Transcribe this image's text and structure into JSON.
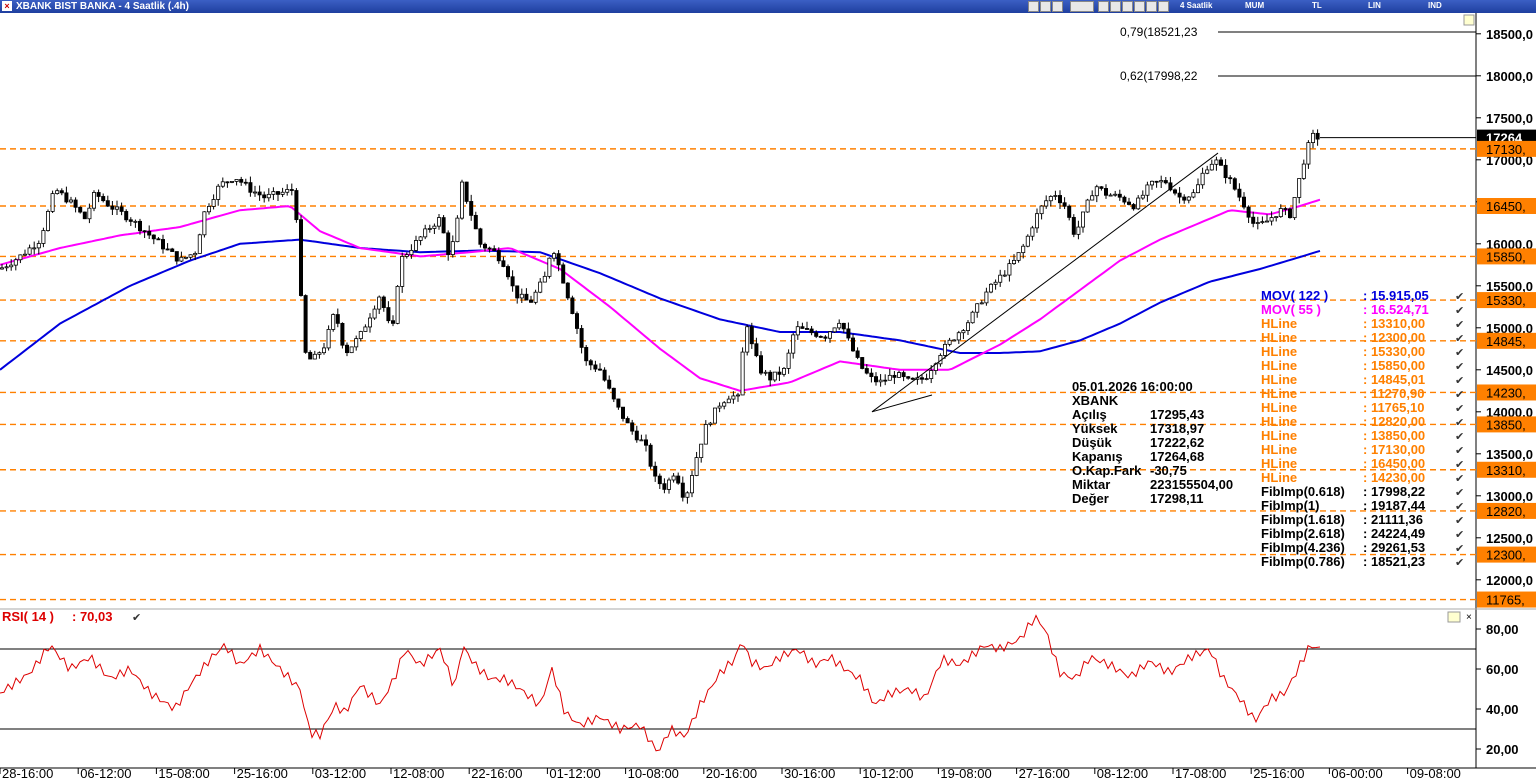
{
  "window": {
    "title": "XBANK BIST BANKA - 4 Saatlik (.4h)",
    "toolbar": [
      "4 Saatlik",
      "MUM",
      "TL",
      "LIN",
      "IND"
    ]
  },
  "colors": {
    "candle": "#000000",
    "mov122": "#0000dd",
    "mov55": "#ff00ff",
    "hline": "#ff8000",
    "rsi": "#dd0000"
  },
  "chart_data": [
    {
      "type": "candlestick",
      "symbol": "XBANK",
      "ylim": [
        11700,
        18700
      ],
      "y_ticks": [
        "18500,0",
        "18000,0",
        "17500,0",
        "17000,0",
        "16500,0",
        "16000,0",
        "15500,0",
        "15000,0",
        "14500,0",
        "14000,0",
        "13500,0",
        "13000,0",
        "12500,0",
        "12000,0"
      ],
      "x_labels": [
        "28-16:00",
        "06-12:00",
        "15-08:00",
        "25-16:00",
        "03-12:00",
        "12-08:00",
        "22-16:00",
        "01-12:00",
        "10-08:00",
        "20-16:00",
        "30-16:00",
        "10-12:00",
        "19-08:00",
        "27-16:00",
        "08-12:00",
        "17-08:00",
        "25-16:00",
        "06-00:00",
        "09-08:00"
      ],
      "last_price": "17264",
      "fib_levels": [
        {
          "label": "0,79(18521,23",
          "value": 18521.23
        },
        {
          "label": "0,62(17998,22",
          "value": 17998.22
        }
      ],
      "hlines": [
        {
          "label": "17130,",
          "value": 17130
        },
        {
          "label": "16450,",
          "value": 16450
        },
        {
          "label": "15850,",
          "value": 15850
        },
        {
          "label": "15330,",
          "value": 15330
        },
        {
          "label": "14845,",
          "value": 14845
        },
        {
          "label": "14230,",
          "value": 14230
        },
        {
          "label": "13850,",
          "value": 13850
        },
        {
          "label": "13310,",
          "value": 13310
        },
        {
          "label": "12820,",
          "value": 12820
        },
        {
          "label": "12300,",
          "value": 12300
        },
        {
          "label": "11765,",
          "value": 11765
        }
      ],
      "price_anchors": [
        [
          0,
          15700
        ],
        [
          20,
          15850
        ],
        [
          40,
          16050
        ],
        [
          55,
          16650
        ],
        [
          70,
          16500
        ],
        [
          85,
          16300
        ],
        [
          95,
          16600
        ],
        [
          110,
          16450
        ],
        [
          130,
          16300
        ],
        [
          150,
          16100
        ],
        [
          165,
          15950
        ],
        [
          180,
          15800
        ],
        [
          195,
          15900
        ],
        [
          205,
          16400
        ],
        [
          220,
          16700
        ],
        [
          235,
          16800
        ],
        [
          250,
          16650
        ],
        [
          265,
          16550
        ],
        [
          280,
          16600
        ],
        [
          295,
          16650
        ],
        [
          300,
          15500
        ],
        [
          305,
          14700
        ],
        [
          312,
          14600
        ],
        [
          325,
          14800
        ],
        [
          335,
          15200
        ],
        [
          345,
          14700
        ],
        [
          360,
          14900
        ],
        [
          380,
          15400
        ],
        [
          392,
          14900
        ],
        [
          400,
          15800
        ],
        [
          415,
          16000
        ],
        [
          430,
          16200
        ],
        [
          440,
          16300
        ],
        [
          448,
          15900
        ],
        [
          455,
          16050
        ],
        [
          462,
          16700
        ],
        [
          470,
          16400
        ],
        [
          480,
          16000
        ],
        [
          495,
          15900
        ],
        [
          505,
          15750
        ],
        [
          515,
          15400
        ],
        [
          530,
          15300
        ],
        [
          545,
          15600
        ],
        [
          552,
          16000
        ],
        [
          565,
          15500
        ],
        [
          575,
          15100
        ],
        [
          585,
          14600
        ],
        [
          600,
          14500
        ],
        [
          615,
          14100
        ],
        [
          630,
          13800
        ],
        [
          645,
          13600
        ],
        [
          655,
          13200
        ],
        [
          665,
          13100
        ],
        [
          675,
          13300
        ],
        [
          685,
          12950
        ],
        [
          695,
          13400
        ],
        [
          705,
          13800
        ],
        [
          720,
          14100
        ],
        [
          730,
          14200
        ],
        [
          740,
          14150
        ],
        [
          745,
          15200
        ],
        [
          750,
          14850
        ],
        [
          760,
          14500
        ],
        [
          770,
          14400
        ],
        [
          785,
          14500
        ],
        [
          795,
          15000
        ],
        [
          810,
          14950
        ],
        [
          825,
          14900
        ],
        [
          840,
          15100
        ],
        [
          850,
          14800
        ],
        [
          860,
          14550
        ],
        [
          870,
          14400
        ],
        [
          880,
          14350
        ],
        [
          895,
          14450
        ],
        [
          910,
          14350
        ],
        [
          925,
          14400
        ],
        [
          940,
          14700
        ],
        [
          955,
          14900
        ],
        [
          970,
          15100
        ],
        [
          985,
          15400
        ],
        [
          1000,
          15600
        ],
        [
          1015,
          15800
        ],
        [
          1025,
          16000
        ],
        [
          1035,
          16300
        ],
        [
          1045,
          16500
        ],
        [
          1055,
          16600
        ],
        [
          1065,
          16450
        ],
        [
          1075,
          16100
        ],
        [
          1085,
          16400
        ],
        [
          1095,
          16700
        ],
        [
          1105,
          16600
        ],
        [
          1120,
          16550
        ],
        [
          1135,
          16450
        ],
        [
          1150,
          16700
        ],
        [
          1165,
          16750
        ],
        [
          1180,
          16550
        ],
        [
          1195,
          16600
        ],
        [
          1205,
          16900
        ],
        [
          1215,
          17000
        ],
        [
          1230,
          16750
        ],
        [
          1245,
          16450
        ],
        [
          1255,
          16200
        ],
        [
          1265,
          16250
        ],
        [
          1280,
          16400
        ],
        [
          1290,
          16350
        ],
        [
          1298,
          16700
        ],
        [
          1305,
          17050
        ],
        [
          1312,
          17280
        ],
        [
          1320,
          17264
        ]
      ],
      "mov122_anchors": [
        [
          0,
          14500
        ],
        [
          60,
          15050
        ],
        [
          130,
          15500
        ],
        [
          190,
          15800
        ],
        [
          240,
          16000
        ],
        [
          300,
          16050
        ],
        [
          360,
          15950
        ],
        [
          420,
          15900
        ],
        [
          480,
          15920
        ],
        [
          540,
          15900
        ],
        [
          600,
          15650
        ],
        [
          660,
          15350
        ],
        [
          720,
          15100
        ],
        [
          780,
          14950
        ],
        [
          840,
          14950
        ],
        [
          900,
          14850
        ],
        [
          960,
          14700
        ],
        [
          1000,
          14700
        ],
        [
          1040,
          14720
        ],
        [
          1080,
          14850
        ],
        [
          1120,
          15050
        ],
        [
          1160,
          15300
        ],
        [
          1210,
          15550
        ],
        [
          1260,
          15700
        ],
        [
          1320,
          15915
        ]
      ],
      "mov55_anchors": [
        [
          0,
          15750
        ],
        [
          60,
          15950
        ],
        [
          120,
          16100
        ],
        [
          180,
          16200
        ],
        [
          240,
          16400
        ],
        [
          290,
          16450
        ],
        [
          320,
          16150
        ],
        [
          360,
          15950
        ],
        [
          420,
          15850
        ],
        [
          470,
          15900
        ],
        [
          510,
          15950
        ],
        [
          560,
          15700
        ],
        [
          610,
          15250
        ],
        [
          660,
          14750
        ],
        [
          700,
          14400
        ],
        [
          740,
          14250
        ],
        [
          790,
          14350
        ],
        [
          840,
          14600
        ],
        [
          900,
          14500
        ],
        [
          950,
          14500
        ],
        [
          1000,
          14800
        ],
        [
          1040,
          15100
        ],
        [
          1080,
          15450
        ],
        [
          1120,
          15800
        ],
        [
          1160,
          16050
        ],
        [
          1200,
          16250
        ],
        [
          1230,
          16400
        ],
        [
          1270,
          16350
        ],
        [
          1300,
          16450
        ],
        [
          1320,
          16525
        ]
      ],
      "trendline": [
        [
          872,
          14000
        ],
        [
          1218,
          17080
        ]
      ],
      "info_panel": {
        "datetime": "05.01.2026  16:00:00",
        "symbol": "XBANK",
        "rows": [
          {
            "k": "Açılış",
            "v": "17295,43"
          },
          {
            "k": "Yüksek",
            "v": "17318,97"
          },
          {
            "k": "Düşük",
            "v": "17222,62"
          },
          {
            "k": "Kapanış",
            "v": "17264,68"
          },
          {
            "k": "O.Kap.Fark",
            "v": "-30,75"
          },
          {
            "k": "Miktar",
            "v": "223155504,00"
          },
          {
            "k": "Değer",
            "v": "17298,11"
          }
        ]
      },
      "legend": [
        {
          "name": "MOV( 122 )",
          "value": ": 15.915,05",
          "color": "#0000dd"
        },
        {
          "name": "MOV( 55 )",
          "value": ": 16.524,71",
          "color": "#ff00ff"
        },
        {
          "name": "HLine",
          "value": ": 13310,00",
          "color": "#ff8000"
        },
        {
          "name": "HLine",
          "value": ": 12300,00",
          "color": "#ff8000"
        },
        {
          "name": "HLine",
          "value": ": 15330,00",
          "color": "#ff8000"
        },
        {
          "name": "HLine",
          "value": ": 15850,00",
          "color": "#ff8000"
        },
        {
          "name": "HLine",
          "value": ": 14845,01",
          "color": "#ff8000"
        },
        {
          "name": "HLine",
          "value": ": 11270,90",
          "color": "#ff8000"
        },
        {
          "name": "HLine",
          "value": ": 11765,10",
          "color": "#ff8000"
        },
        {
          "name": "HLine",
          "value": ": 12820,00",
          "color": "#ff8000"
        },
        {
          "name": "HLine",
          "value": ": 13850,00",
          "color": "#ff8000"
        },
        {
          "name": "HLine",
          "value": ": 17130,00",
          "color": "#ff8000"
        },
        {
          "name": "HLine",
          "value": ": 16450,00",
          "color": "#ff8000"
        },
        {
          "name": "HLine",
          "value": ": 14230,00",
          "color": "#ff8000"
        },
        {
          "name": "FibImp(0.618)",
          "value": ": 17998,22",
          "color": "#000000"
        },
        {
          "name": "FibImp(1)",
          "value": ": 19187,44",
          "color": "#000000"
        },
        {
          "name": "FibImp(1.618)",
          "value": ": 21111,36",
          "color": "#000000"
        },
        {
          "name": "FibImp(2.618)",
          "value": ": 24224,49",
          "color": "#000000"
        },
        {
          "name": "FibImp(4.236)",
          "value": ": 29261,53",
          "color": "#000000"
        },
        {
          "name": "FibImp(0.786)",
          "value": ": 18521,23",
          "color": "#000000"
        }
      ]
    },
    {
      "type": "line",
      "name": "RSI( 14 )",
      "current": ": 70,03",
      "ylim": [
        12,
        88
      ],
      "y_ticks": [
        "80,00",
        "60,00",
        "40,00",
        "20,00"
      ],
      "levels": [
        70,
        30
      ],
      "anchors": [
        [
          0,
          48
        ],
        [
          30,
          58
        ],
        [
          50,
          72
        ],
        [
          70,
          60
        ],
        [
          90,
          66
        ],
        [
          110,
          55
        ],
        [
          130,
          60
        ],
        [
          150,
          48
        ],
        [
          175,
          40
        ],
        [
          190,
          52
        ],
        [
          210,
          65
        ],
        [
          225,
          72
        ],
        [
          240,
          62
        ],
        [
          260,
          70
        ],
        [
          280,
          60
        ],
        [
          300,
          50
        ],
        [
          310,
          28
        ],
        [
          320,
          27
        ],
        [
          335,
          42
        ],
        [
          345,
          38
        ],
        [
          360,
          52
        ],
        [
          380,
          42
        ],
        [
          395,
          56
        ],
        [
          405,
          70
        ],
        [
          420,
          62
        ],
        [
          440,
          70
        ],
        [
          455,
          50
        ],
        [
          462,
          72
        ],
        [
          475,
          62
        ],
        [
          490,
          55
        ],
        [
          505,
          55
        ],
        [
          520,
          50
        ],
        [
          540,
          42
        ],
        [
          552,
          60
        ],
        [
          565,
          38
        ],
        [
          580,
          32
        ],
        [
          600,
          36
        ],
        [
          620,
          30
        ],
        [
          640,
          32
        ],
        [
          658,
          18
        ],
        [
          670,
          30
        ],
        [
          685,
          26
        ],
        [
          700,
          42
        ],
        [
          720,
          58
        ],
        [
          735,
          65
        ],
        [
          742,
          75
        ],
        [
          750,
          64
        ],
        [
          765,
          60
        ],
        [
          780,
          66
        ],
        [
          798,
          70
        ],
        [
          815,
          62
        ],
        [
          830,
          66
        ],
        [
          845,
          60
        ],
        [
          860,
          55
        ],
        [
          875,
          42
        ],
        [
          890,
          48
        ],
        [
          910,
          50
        ],
        [
          925,
          45
        ],
        [
          942,
          65
        ],
        [
          960,
          62
        ],
        [
          985,
          72
        ],
        [
          1000,
          70
        ],
        [
          1020,
          75
        ],
        [
          1035,
          86
        ],
        [
          1045,
          80
        ],
        [
          1060,
          58
        ],
        [
          1075,
          55
        ],
        [
          1090,
          66
        ],
        [
          1110,
          62
        ],
        [
          1130,
          56
        ],
        [
          1150,
          64
        ],
        [
          1170,
          58
        ],
        [
          1190,
          66
        ],
        [
          1210,
          70
        ],
        [
          1222,
          56
        ],
        [
          1240,
          45
        ],
        [
          1255,
          34
        ],
        [
          1270,
          45
        ],
        [
          1285,
          48
        ],
        [
          1298,
          60
        ],
        [
          1310,
          72
        ],
        [
          1320,
          70
        ]
      ]
    }
  ]
}
